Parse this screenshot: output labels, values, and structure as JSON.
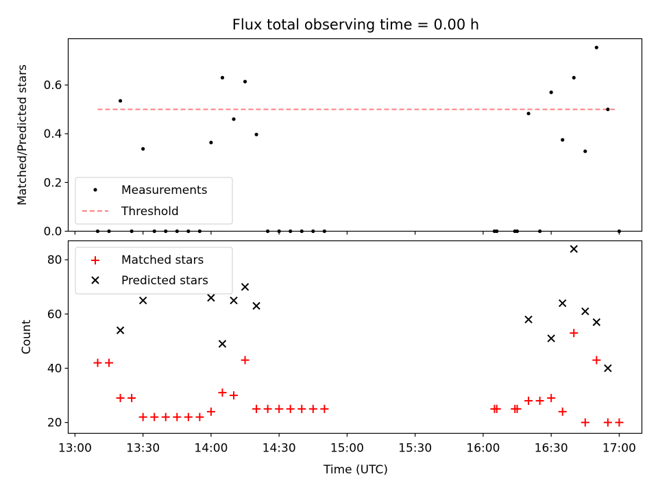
{
  "title": "Flux total observing time = 0.00 h",
  "chart_data": [
    {
      "type": "scatter",
      "panel": "top",
      "ylabel": "Matched/Predicted stars",
      "xlabel": "",
      "ylim": [
        0,
        0.79
      ],
      "yticks": [
        0.0,
        0.2,
        0.4,
        0.6
      ],
      "ytick_labels": [
        "0.0",
        "0.2",
        "0.4",
        "0.6"
      ],
      "legend": "bottom-left",
      "series": [
        {
          "name": "Measurements",
          "style": "dot",
          "color": "#000000",
          "x": [
            "13:10",
            "13:15",
            "13:20",
            "13:25",
            "13:30",
            "13:35",
            "13:40",
            "13:45",
            "13:50",
            "13:55",
            "14:00",
            "14:05",
            "14:10",
            "14:15",
            "14:20",
            "14:25",
            "14:30",
            "14:35",
            "14:40",
            "14:45",
            "14:50",
            "16:05",
            "16:06",
            "16:14",
            "16:15",
            "16:20",
            "16:25",
            "16:30",
            "16:35",
            "16:40",
            "16:45",
            "16:50",
            "16:55",
            "17:00"
          ],
          "y": [
            0.0,
            0.0,
            0.535,
            0.0,
            0.338,
            0.0,
            0.0,
            0.0,
            0.0,
            0.0,
            0.364,
            0.63,
            0.46,
            0.614,
            0.397,
            0.0,
            0.0,
            0.0,
            0.0,
            0.0,
            0.0,
            0.0,
            0.0,
            0.0,
            0.0,
            0.483,
            0.0,
            0.57,
            0.375,
            0.63,
            0.328,
            0.754,
            0.5,
            0.0
          ]
        },
        {
          "name": "Threshold",
          "style": "dashed-line",
          "color": "#ff7f7f",
          "x": [
            "13:10",
            "16:58"
          ],
          "y": [
            0.5,
            0.5
          ]
        }
      ]
    },
    {
      "type": "scatter",
      "panel": "bottom",
      "ylabel": "Count",
      "xlabel": "Time (UTC)",
      "ylim": [
        16,
        87
      ],
      "yticks": [
        20,
        40,
        60,
        80
      ],
      "ytick_labels": [
        "20",
        "40",
        "60",
        "80"
      ],
      "xlim": [
        "12:57",
        "17:10"
      ],
      "xticks": [
        "13:00",
        "13:30",
        "14:00",
        "14:30",
        "15:00",
        "15:30",
        "16:00",
        "16:30",
        "17:00"
      ],
      "xtick_labels": [
        "13:00",
        "13:30",
        "14:00",
        "14:30",
        "15:00",
        "15:30",
        "16:00",
        "16:30",
        "17:00"
      ],
      "legend": "top-left",
      "series": [
        {
          "name": "Matched stars",
          "marker": "+",
          "color": "#ff0000",
          "x": [
            "13:10",
            "13:15",
            "13:20",
            "13:25",
            "13:30",
            "13:35",
            "13:40",
            "13:45",
            "13:50",
            "13:55",
            "14:00",
            "14:05",
            "14:10",
            "14:15",
            "14:20",
            "14:25",
            "14:30",
            "14:35",
            "14:40",
            "14:45",
            "14:50",
            "16:05",
            "16:06",
            "16:14",
            "16:15",
            "16:20",
            "16:25",
            "16:30",
            "16:35",
            "16:40",
            "16:45",
            "16:50",
            "16:55",
            "17:00"
          ],
          "y": [
            42,
            42,
            29,
            29,
            22,
            22,
            22,
            22,
            22,
            22,
            24,
            31,
            30,
            43,
            25,
            25,
            25,
            25,
            25,
            25,
            25,
            25,
            25,
            25,
            25,
            28,
            28,
            29,
            24,
            53,
            20,
            43,
            20,
            20
          ]
        },
        {
          "name": "Predicted stars",
          "marker": "x",
          "color": "#000000",
          "x": [
            "13:20",
            "13:30",
            "14:00",
            "14:05",
            "14:10",
            "14:15",
            "14:20",
            "16:20",
            "16:30",
            "16:35",
            "16:40",
            "16:45",
            "16:50",
            "16:55"
          ],
          "y": [
            54,
            65,
            66,
            49,
            65,
            70,
            63,
            58,
            51,
            64,
            84,
            61,
            57,
            40
          ]
        }
      ]
    }
  ]
}
